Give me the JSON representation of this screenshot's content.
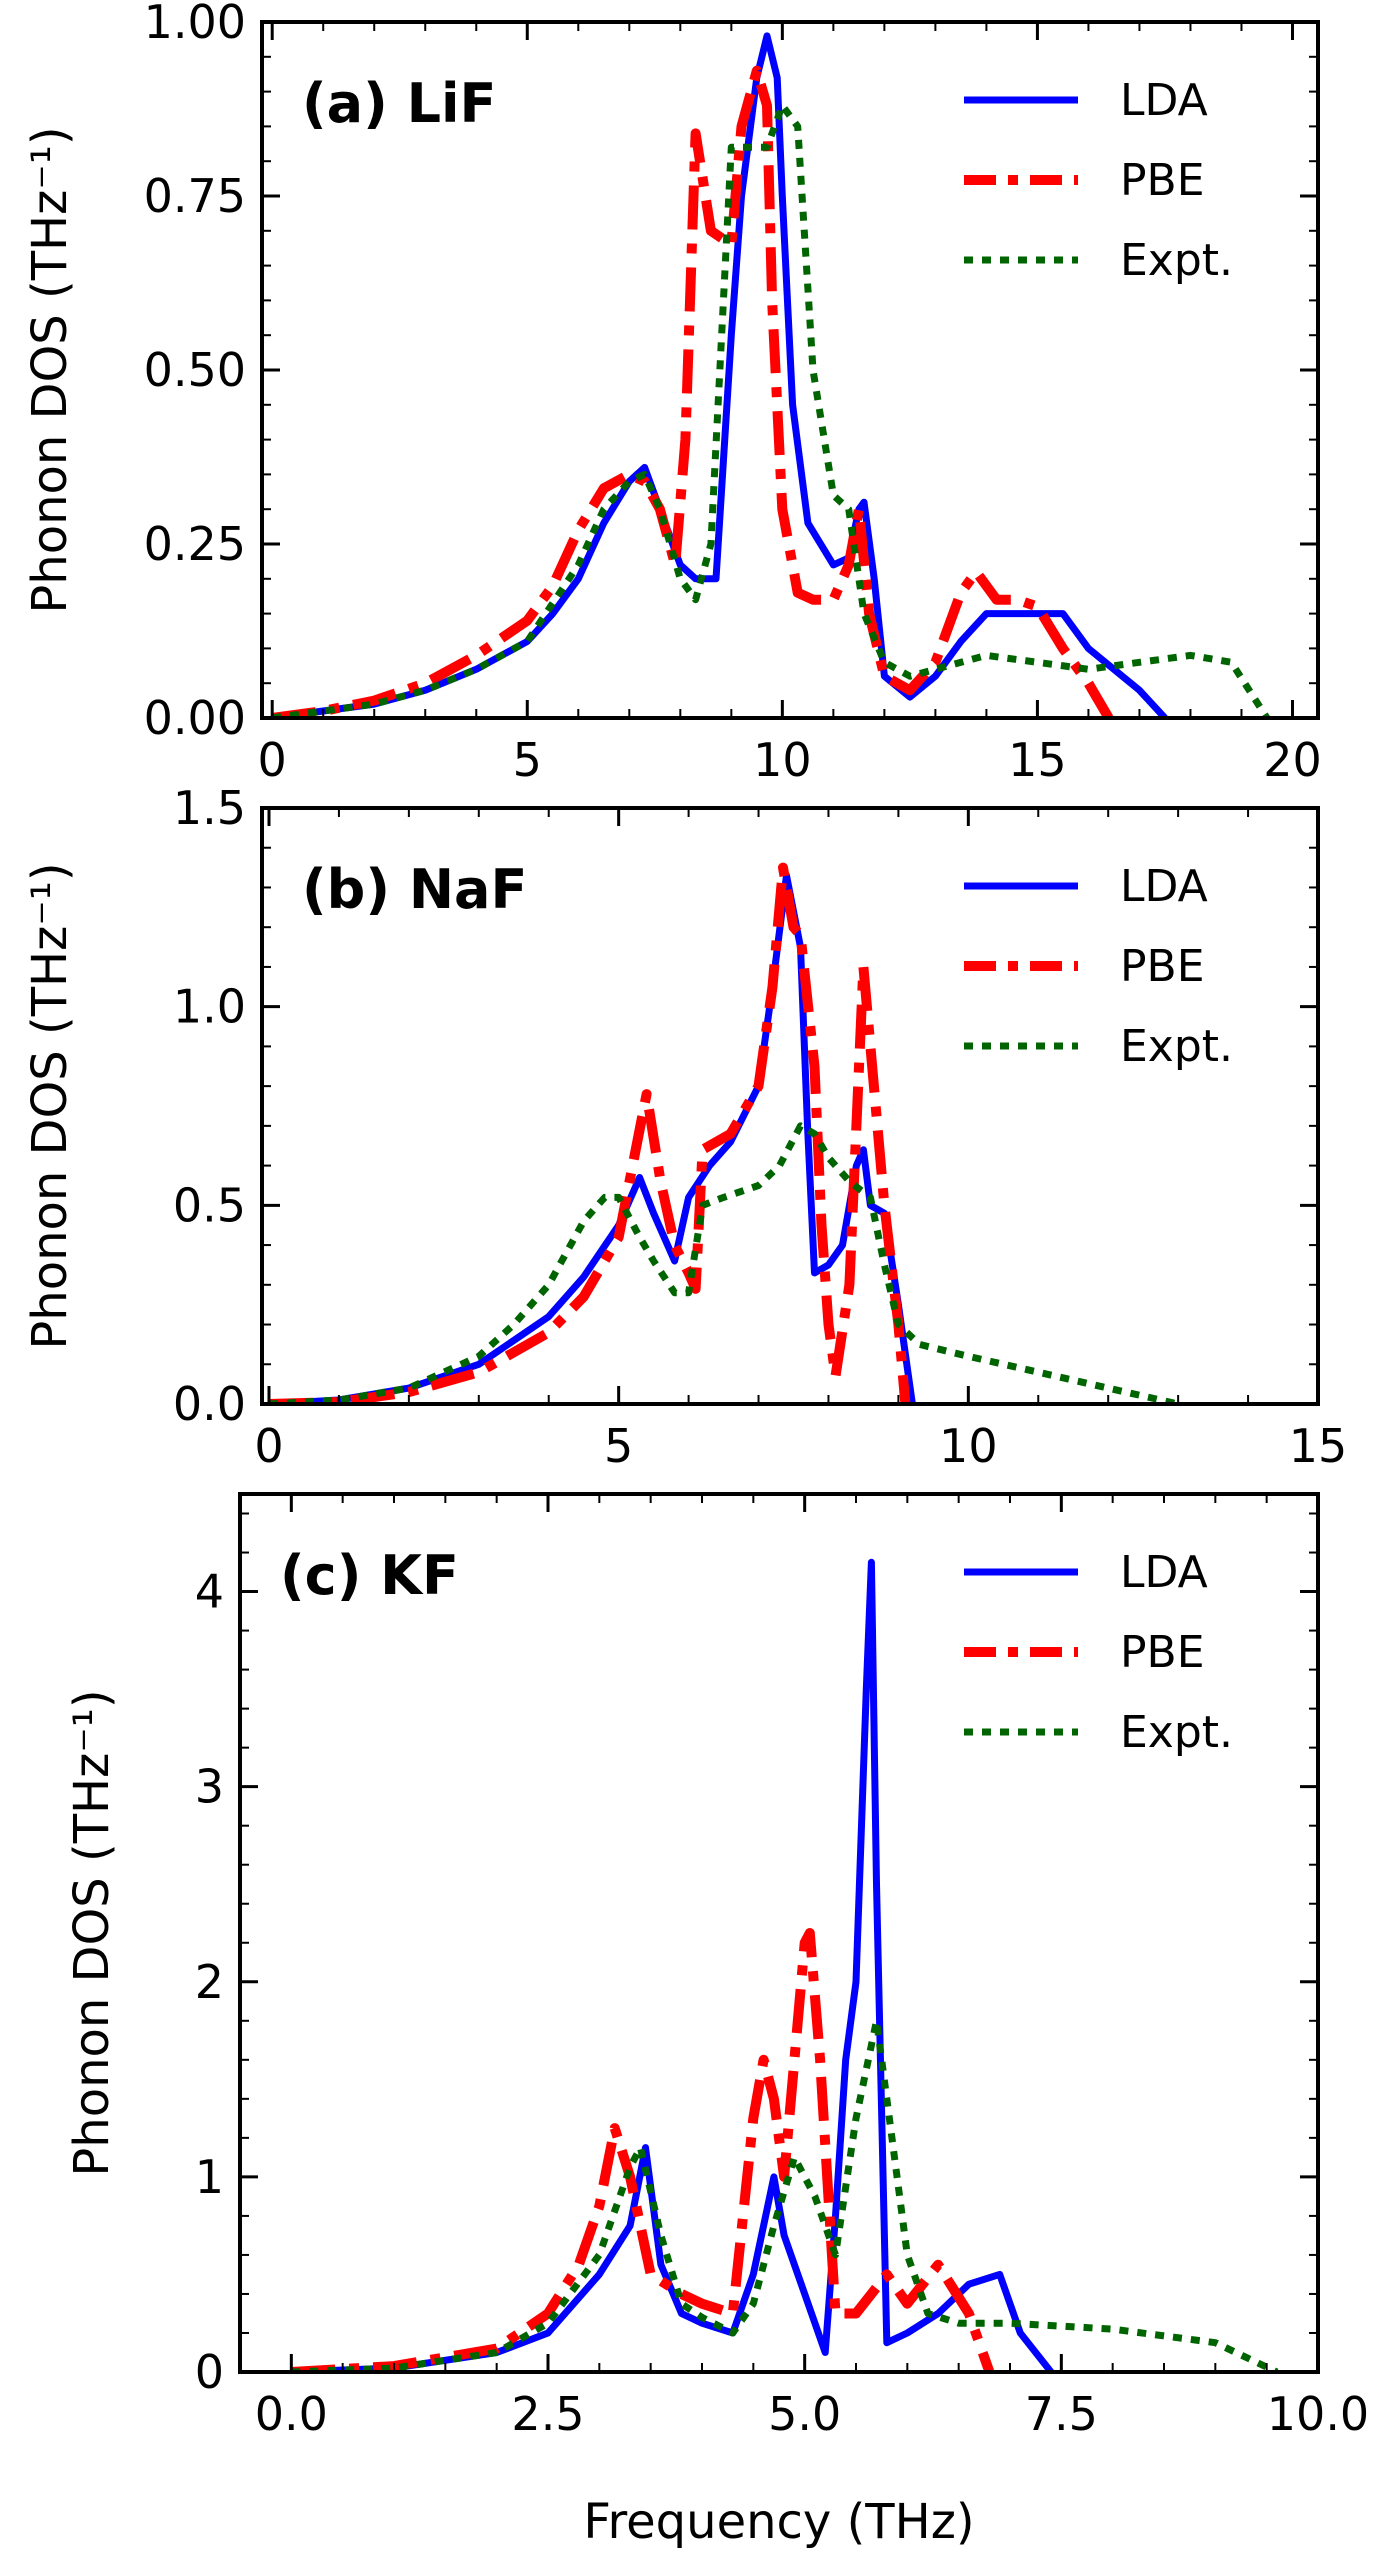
{
  "colors": {
    "lda": "#0000ff",
    "pbe": "#ff0000",
    "expt": "#006400"
  },
  "chart_data": [
    {
      "type": "line",
      "panel_id": "a",
      "title": "(a) LiF",
      "ylabel": "Phonon DOS (THz⁻¹)",
      "xlabel": "",
      "xlim": [
        -0.2,
        20.5
      ],
      "ylim": [
        0,
        1.0
      ],
      "xticks": [
        0,
        5,
        10,
        15,
        20
      ],
      "xtick_labels": [
        "0",
        "5",
        "10",
        "15",
        "20"
      ],
      "yticks": [
        0,
        0.25,
        0.5,
        0.75,
        1.0
      ],
      "ytick_labels": [
        "0.00",
        "0.25",
        "0.50",
        "0.75",
        "1.00"
      ],
      "legend": [
        "LDA",
        "PBE",
        "Expt."
      ],
      "series": [
        {
          "name": "LDA",
          "x": [
            0,
            1,
            2,
            3,
            4,
            5,
            5.5,
            6,
            6.5,
            7,
            7.3,
            7.6,
            8,
            8.3,
            8.7,
            9,
            9.2,
            9.5,
            9.7,
            9.9,
            10,
            10.2,
            10.5,
            11,
            11.3,
            11.5,
            11.6,
            11.8,
            12,
            12.5,
            13,
            13.5,
            14,
            14.5,
            15,
            15.5,
            16,
            16.5,
            17,
            17.5
          ],
          "y": [
            0,
            0.01,
            0.02,
            0.04,
            0.07,
            0.11,
            0.15,
            0.2,
            0.28,
            0.34,
            0.36,
            0.3,
            0.22,
            0.2,
            0.2,
            0.55,
            0.75,
            0.92,
            0.98,
            0.92,
            0.75,
            0.45,
            0.28,
            0.22,
            0.23,
            0.3,
            0.31,
            0.2,
            0.06,
            0.03,
            0.06,
            0.11,
            0.15,
            0.15,
            0.15,
            0.15,
            0.1,
            0.07,
            0.04,
            0
          ]
        },
        {
          "name": "PBE",
          "x": [
            0,
            1,
            2,
            3,
            4,
            5,
            5.5,
            6,
            6.5,
            7,
            7.3,
            7.6,
            7.9,
            8.1,
            8.3,
            8.6,
            9,
            9.2,
            9.5,
            9.7,
            9.8,
            10,
            10.3,
            10.6,
            11,
            11.3,
            11.5,
            11.7,
            12,
            12.5,
            13,
            13.5,
            13.8,
            14.2,
            14.6,
            15,
            15.5,
            16,
            16.4
          ],
          "y": [
            0,
            0.01,
            0.025,
            0.05,
            0.09,
            0.14,
            0.19,
            0.27,
            0.33,
            0.35,
            0.34,
            0.3,
            0.22,
            0.4,
            0.84,
            0.7,
            0.68,
            0.85,
            0.93,
            0.88,
            0.6,
            0.3,
            0.18,
            0.17,
            0.17,
            0.22,
            0.3,
            0.15,
            0.06,
            0.04,
            0.08,
            0.18,
            0.21,
            0.17,
            0.17,
            0.16,
            0.1,
            0.05,
            0
          ]
        },
        {
          "name": "Expt.",
          "x": [
            0,
            1,
            2,
            3,
            4,
            5,
            6,
            6.5,
            7,
            7.3,
            7.6,
            8,
            8.3,
            8.6,
            9,
            9.3,
            9.7,
            10,
            10.3,
            10.6,
            11,
            11.3,
            11.6,
            12,
            12.5,
            13,
            14,
            15,
            16,
            17,
            18,
            18.8,
            19.5
          ],
          "y": [
            0,
            0.01,
            0.02,
            0.04,
            0.07,
            0.11,
            0.22,
            0.3,
            0.34,
            0.35,
            0.3,
            0.2,
            0.17,
            0.25,
            0.82,
            0.82,
            0.82,
            0.88,
            0.85,
            0.5,
            0.32,
            0.3,
            0.15,
            0.08,
            0.06,
            0.07,
            0.09,
            0.08,
            0.07,
            0.08,
            0.09,
            0.08,
            0
          ]
        }
      ]
    },
    {
      "type": "line",
      "panel_id": "b",
      "title": "(b) NaF",
      "ylabel": "Phonon DOS (THz⁻¹)",
      "xlabel": "",
      "xlim": [
        -0.1,
        15
      ],
      "ylim": [
        0,
        1.5
      ],
      "xticks": [
        0,
        5,
        10,
        15
      ],
      "xtick_labels": [
        "0",
        "5",
        "10",
        "15"
      ],
      "yticks": [
        0,
        0.5,
        1.0,
        1.5
      ],
      "ytick_labels": [
        "0.0",
        "0.5",
        "1.0",
        "1.5"
      ],
      "legend": [
        "LDA",
        "PBE",
        "Expt."
      ],
      "series": [
        {
          "name": "LDA",
          "x": [
            0,
            1,
            2,
            3,
            4,
            4.5,
            5,
            5.3,
            5.5,
            5.8,
            6,
            6.3,
            6.6,
            7,
            7.2,
            7.4,
            7.6,
            7.7,
            7.8,
            8,
            8.2,
            8.4,
            8.5,
            8.6,
            8.8,
            9,
            9.2
          ],
          "y": [
            0,
            0.01,
            0.04,
            0.1,
            0.22,
            0.32,
            0.45,
            0.57,
            0.48,
            0.36,
            0.52,
            0.6,
            0.66,
            0.8,
            1.05,
            1.33,
            1.15,
            0.7,
            0.33,
            0.35,
            0.4,
            0.6,
            0.64,
            0.5,
            0.48,
            0.25,
            0
          ]
        },
        {
          "name": "PBE",
          "x": [
            0,
            1,
            2,
            3,
            4,
            4.5,
            5,
            5.2,
            5.4,
            5.6,
            5.8,
            6,
            6.1,
            6.2,
            6.6,
            7,
            7.2,
            7.35,
            7.5,
            7.6,
            7.8,
            7.9,
            8,
            8.1,
            8.3,
            8.5,
            8.6,
            8.8,
            9,
            9.1
          ],
          "y": [
            0,
            0.005,
            0.03,
            0.08,
            0.18,
            0.27,
            0.42,
            0.6,
            0.78,
            0.56,
            0.4,
            0.33,
            0.29,
            0.64,
            0.68,
            0.8,
            1.05,
            1.35,
            1.2,
            1.18,
            0.85,
            0.45,
            0.2,
            0.07,
            0.3,
            1.1,
            0.9,
            0.5,
            0.2,
            0
          ]
        },
        {
          "name": "Expt.",
          "x": [
            0,
            1,
            2,
            3,
            3.5,
            4,
            4.5,
            4.8,
            5,
            5.3,
            5.5,
            5.8,
            6,
            6.2,
            6.5,
            7,
            7.3,
            7.6,
            7.8,
            8,
            8.3,
            8.6,
            8.8,
            9,
            9.3,
            10,
            11,
            12,
            13
          ],
          "y": [
            0,
            0.01,
            0.04,
            0.12,
            0.2,
            0.3,
            0.46,
            0.52,
            0.52,
            0.42,
            0.36,
            0.28,
            0.28,
            0.5,
            0.52,
            0.55,
            0.6,
            0.7,
            0.68,
            0.62,
            0.56,
            0.52,
            0.35,
            0.2,
            0.15,
            0.12,
            0.08,
            0.04,
            0
          ]
        }
      ]
    },
    {
      "type": "line",
      "panel_id": "c",
      "title": "(c) KF",
      "ylabel": "Phonon DOS (THz⁻¹)",
      "xlabel": "Frequency (THz)",
      "xlim": [
        -0.5,
        10
      ],
      "ylim": [
        0,
        4.5
      ],
      "xticks": [
        0,
        2.5,
        5,
        7.5,
        10
      ],
      "xtick_labels": [
        "0.0",
        "2.5",
        "5.0",
        "7.5",
        "10.0"
      ],
      "yticks": [
        0,
        1,
        2,
        3,
        4
      ],
      "ytick_labels": [
        "0",
        "1",
        "2",
        "3",
        "4"
      ],
      "legend": [
        "LDA",
        "PBE",
        "Expt."
      ],
      "series": [
        {
          "name": "LDA",
          "x": [
            0,
            1,
            2,
            2.5,
            3,
            3.3,
            3.45,
            3.6,
            3.8,
            4,
            4.3,
            4.5,
            4.7,
            4.8,
            5,
            5.2,
            5.3,
            5.4,
            5.5,
            5.6,
            5.65,
            5.7,
            5.8,
            6,
            6.3,
            6.6,
            6.9,
            7.1,
            7.4
          ],
          "y": [
            0,
            0.02,
            0.1,
            0.2,
            0.5,
            0.75,
            1.15,
            0.55,
            0.3,
            0.25,
            0.2,
            0.5,
            1.0,
            0.7,
            0.4,
            0.1,
            0.8,
            1.6,
            2.0,
            3.5,
            4.15,
            2.5,
            0.15,
            0.2,
            0.3,
            0.45,
            0.5,
            0.2,
            0
          ]
        },
        {
          "name": "PBE",
          "x": [
            0,
            1,
            2,
            2.5,
            2.8,
            3,
            3.15,
            3.3,
            3.5,
            3.8,
            4,
            4.3,
            4.5,
            4.6,
            4.7,
            4.8,
            4.9,
            5,
            5.05,
            5.15,
            5.3,
            5.5,
            5.8,
            6,
            6.3,
            6.6,
            6.8
          ],
          "y": [
            0,
            0.03,
            0.12,
            0.3,
            0.55,
            0.85,
            1.25,
            1.0,
            0.5,
            0.4,
            0.35,
            0.3,
            1.3,
            1.6,
            1.4,
            1.0,
            1.6,
            2.2,
            2.25,
            1.6,
            0.3,
            0.3,
            0.5,
            0.35,
            0.55,
            0.3,
            0
          ]
        },
        {
          "name": "Expt.",
          "x": [
            0,
            1,
            2,
            2.5,
            3,
            3.3,
            3.4,
            3.6,
            3.8,
            4,
            4.3,
            4.5,
            4.7,
            4.9,
            5.1,
            5.3,
            5.5,
            5.7,
            5.8,
            6,
            6.2,
            6.5,
            7,
            8,
            9,
            9.6
          ],
          "y": [
            0,
            0.02,
            0.1,
            0.25,
            0.6,
            1.05,
            1.15,
            0.7,
            0.35,
            0.28,
            0.2,
            0.35,
            0.75,
            1.1,
            0.9,
            0.6,
            1.3,
            1.8,
            1.4,
            0.6,
            0.3,
            0.25,
            0.25,
            0.22,
            0.15,
            0
          ]
        }
      ]
    }
  ]
}
